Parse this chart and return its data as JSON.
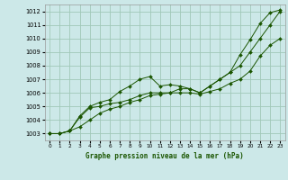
{
  "title": "Graphe pression niveau de la mer (hPa)",
  "bg_color": "#cce8e8",
  "grid_color": "#a0c8b8",
  "line_color": "#1a5500",
  "xlim": [
    -0.5,
    23.5
  ],
  "ylim": [
    1002.5,
    1012.5
  ],
  "xticks": [
    0,
    1,
    2,
    3,
    4,
    5,
    6,
    7,
    8,
    9,
    10,
    11,
    12,
    13,
    14,
    15,
    16,
    17,
    18,
    19,
    20,
    21,
    22,
    23
  ],
  "yticks": [
    1003,
    1004,
    1005,
    1006,
    1007,
    1008,
    1009,
    1010,
    1011,
    1012
  ],
  "series1_x": [
    0,
    1,
    2,
    3,
    4,
    5,
    6,
    7,
    8,
    9,
    10,
    11,
    12,
    13,
    14,
    15,
    16,
    17,
    18,
    19,
    20,
    21,
    22,
    23
  ],
  "series1_y": [
    1003.0,
    1003.0,
    1003.2,
    1004.3,
    1005.0,
    1005.3,
    1005.5,
    1006.1,
    1006.5,
    1007.0,
    1007.2,
    1006.5,
    1006.6,
    1006.5,
    1006.3,
    1006.0,
    1006.5,
    1007.0,
    1007.5,
    1008.8,
    1009.9,
    1011.1,
    1011.9,
    1012.1
  ],
  "series2_x": [
    0,
    1,
    2,
    3,
    4,
    5,
    6,
    7,
    8,
    9,
    10,
    11,
    12,
    13,
    14,
    15,
    16,
    17,
    18,
    19,
    20,
    21,
    22,
    23
  ],
  "series2_y": [
    1003.0,
    1003.0,
    1003.2,
    1004.2,
    1004.9,
    1005.0,
    1005.2,
    1005.3,
    1005.5,
    1005.8,
    1006.0,
    1006.0,
    1006.0,
    1006.3,
    1006.3,
    1006.0,
    1006.5,
    1007.0,
    1007.5,
    1008.0,
    1009.0,
    1010.0,
    1011.0,
    1012.0
  ],
  "series3_x": [
    0,
    1,
    2,
    3,
    4,
    5,
    6,
    7,
    8,
    9,
    10,
    11,
    12,
    13,
    14,
    15,
    16,
    17,
    18,
    19,
    20,
    21,
    22,
    23
  ],
  "series3_y": [
    1003.0,
    1003.0,
    1003.2,
    1003.5,
    1004.0,
    1004.5,
    1004.8,
    1005.0,
    1005.3,
    1005.5,
    1005.8,
    1005.9,
    1006.0,
    1006.0,
    1006.0,
    1005.9,
    1006.1,
    1006.3,
    1006.7,
    1007.0,
    1007.6,
    1008.7,
    1009.5,
    1010.0
  ]
}
